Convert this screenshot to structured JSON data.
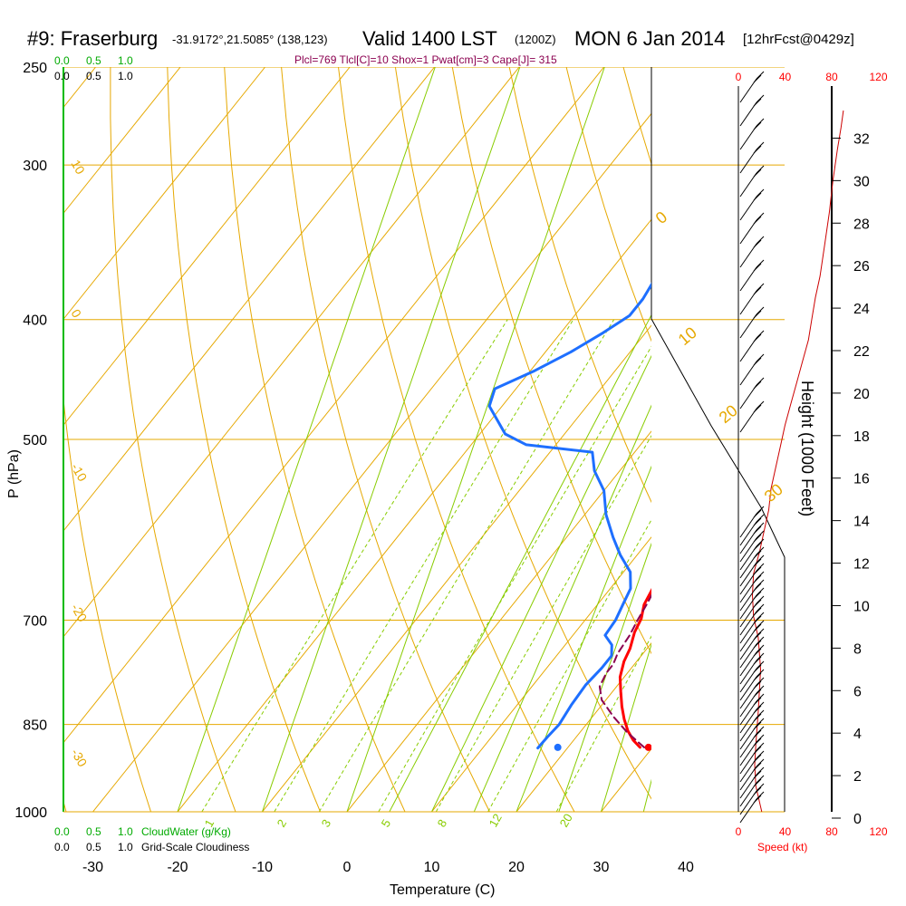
{
  "header": {
    "station": "#9: Fraserburg",
    "coords": "-31.9172°,21.5085° (138,123)",
    "valid": "Valid 1400 LST",
    "zulu": "(1200Z)",
    "date": "MON 6 Jan 2014",
    "forecast": "[12hrFcst@0429z]",
    "indices": "Plcl=769 Tlcl[C]=10 Shox=1 Pwat[cm]=3 Cape[J]= 315"
  },
  "axes": {
    "xlabel": "Temperature (C)",
    "ylabel": "P (hPa)",
    "height_label": "Height (1000 Feet)",
    "speed_label": "Speed (kt)",
    "cloudwater_label": "CloudWater (g/Kg)",
    "cloudiness_label": "Grid-Scale Cloudiness"
  },
  "colors": {
    "temperature": "#ff0000",
    "dewpoint": "#1e6fff",
    "parcel": "#8b0050",
    "isotherm": "#e6a800",
    "mixing_ratio": "#88cc00",
    "adiabat": "#e6a800",
    "cloudwater": "#00aa00"
  },
  "chart_data": {
    "type": "line",
    "title": "#9: Fraserburg",
    "xlabel": "Temperature (C)",
    "ylabel": "P (hPa)",
    "xlim": [
      -35,
      50
    ],
    "ylim": [
      1000,
      250
    ],
    "y_scale": "log",
    "pressure_ticks": [
      250,
      300,
      400,
      500,
      700,
      850,
      1000
    ],
    "temp_ticks": [
      -30,
      -20,
      -10,
      0,
      10,
      20,
      30,
      40
    ],
    "height_ticks": [
      0,
      2,
      4,
      6,
      8,
      10,
      12,
      14,
      16,
      18,
      20,
      22,
      24,
      26,
      28,
      30,
      32
    ],
    "speed_ticks": [
      0,
      40,
      80,
      120
    ],
    "cloud_ticks": [
      "0.0",
      "0.5",
      "1.0"
    ],
    "adiabat_labels": [
      "10",
      "0",
      "-10",
      "-20",
      "-30"
    ],
    "adiabat_labels_right": [
      "0",
      "10",
      "20",
      "30"
    ],
    "mixing_ratio_labels": [
      "1",
      "2",
      "3",
      "5",
      "8",
      "12",
      "20"
    ],
    "series": [
      {
        "name": "Temperature",
        "points": [
          [
            28.5,
            887
          ],
          [
            27,
            875
          ],
          [
            25.5,
            860
          ],
          [
            24,
            842
          ],
          [
            22.5,
            822
          ],
          [
            21,
            800
          ],
          [
            19.5,
            778
          ],
          [
            18.5,
            756
          ],
          [
            18,
            738
          ],
          [
            17,
            716
          ],
          [
            16.5,
            698
          ],
          [
            15.5,
            680
          ],
          [
            15,
            660
          ],
          [
            14.5,
            640
          ],
          [
            14,
            620
          ],
          [
            13.5,
            600
          ],
          [
            13.3,
            580
          ],
          [
            13,
            560
          ],
          [
            13,
            540
          ],
          [
            13.3,
            520
          ],
          [
            13.7,
            505
          ],
          [
            14.3,
            490
          ],
          [
            14.4,
            470
          ],
          [
            14,
            450
          ],
          [
            13.3,
            430
          ],
          [
            12,
            410
          ],
          [
            10.2,
            395
          ],
          [
            8,
            380
          ],
          [
            5.8,
            365
          ],
          [
            3.6,
            350
          ],
          [
            1.5,
            335
          ],
          [
            -0.5,
            320
          ],
          [
            -2.5,
            305
          ],
          [
            -4.5,
            290
          ],
          [
            -6.5,
            280
          ],
          [
            -8.5,
            270
          ],
          [
            -10.5,
            262
          ]
        ]
      },
      {
        "name": "Dewpoint",
        "points": [
          [
            16.5,
            888
          ],
          [
            16.6,
            870
          ],
          [
            16.8,
            850
          ],
          [
            16.4,
            820
          ],
          [
            16.2,
            790
          ],
          [
            16.5,
            765
          ],
          [
            16.5,
            748
          ],
          [
            15.5,
            733
          ],
          [
            13.8,
            720
          ],
          [
            13.6,
            700
          ],
          [
            13,
            680
          ],
          [
            12.4,
            660
          ],
          [
            10.8,
            640
          ],
          [
            8,
            620
          ],
          [
            5.5,
            600
          ],
          [
            2.5,
            575
          ],
          [
            0,
            550
          ],
          [
            -3,
            530
          ],
          [
            -5,
            512
          ],
          [
            -13.5,
            505
          ],
          [
            -17,
            495
          ],
          [
            -21.5,
            470
          ],
          [
            -22.5,
            455
          ],
          [
            -19.5,
            440
          ],
          [
            -17,
            425
          ],
          [
            -15,
            410
          ],
          [
            -13.5,
            397
          ],
          [
            -13.5,
            385
          ],
          [
            -14,
            370
          ],
          [
            -15,
            355
          ],
          [
            -16.5,
            340
          ],
          [
            -18.5,
            320
          ],
          [
            -20.5,
            300
          ],
          [
            -22.5,
            285
          ],
          [
            -24,
            272
          ],
          [
            -25.2,
            262
          ]
        ]
      },
      {
        "name": "Parcel",
        "points": [
          [
            29,
            887
          ],
          [
            25.5,
            862
          ],
          [
            22.5,
            838
          ],
          [
            19.5,
            812
          ],
          [
            18,
            792
          ],
          [
            17.5,
            772
          ],
          [
            17.5,
            760
          ],
          [
            17,
            745
          ],
          [
            16.7,
            720
          ],
          [
            16.2,
            700
          ],
          [
            15.8,
            680
          ],
          [
            15.3,
            660
          ],
          [
            14.9,
            640
          ],
          [
            14.7,
            620
          ],
          [
            14.6,
            600
          ],
          [
            14.5,
            580
          ],
          [
            14.5,
            560
          ],
          [
            14.6,
            540
          ],
          [
            14.6,
            520
          ],
          [
            14.5,
            505
          ]
        ]
      }
    ],
    "surface_markers": [
      {
        "name": "Temperature",
        "x": 29.5,
        "y": 887
      },
      {
        "name": "Dewpoint",
        "x": 18.8,
        "y": 887
      }
    ],
    "wind_speed_profile": {
      "name": "Speed",
      "points": [
        [
          20,
          0.3
        ],
        [
          15,
          1.5
        ],
        [
          14,
          2.5
        ],
        [
          15,
          3.5
        ],
        [
          17,
          5
        ],
        [
          19,
          7
        ],
        [
          17,
          8.5
        ],
        [
          13,
          9.5
        ],
        [
          12,
          10.5
        ],
        [
          13,
          11.5
        ],
        [
          18,
          12.5
        ],
        [
          22,
          13.5
        ],
        [
          26,
          14.5
        ],
        [
          28,
          15.5
        ],
        [
          32,
          16.5
        ],
        [
          36,
          17.5
        ],
        [
          40,
          18.5
        ],
        [
          45,
          19.5
        ],
        [
          50,
          20.5
        ],
        [
          55,
          21.5
        ],
        [
          60,
          22.5
        ],
        [
          63,
          23.5
        ],
        [
          66,
          24.5
        ],
        [
          70,
          25.5
        ],
        [
          74,
          27
        ],
        [
          78,
          28.5
        ],
        [
          81,
          30
        ],
        [
          85,
          31.5
        ],
        [
          88,
          32.5
        ],
        [
          90,
          33.3
        ]
      ]
    },
    "grid": true
  }
}
